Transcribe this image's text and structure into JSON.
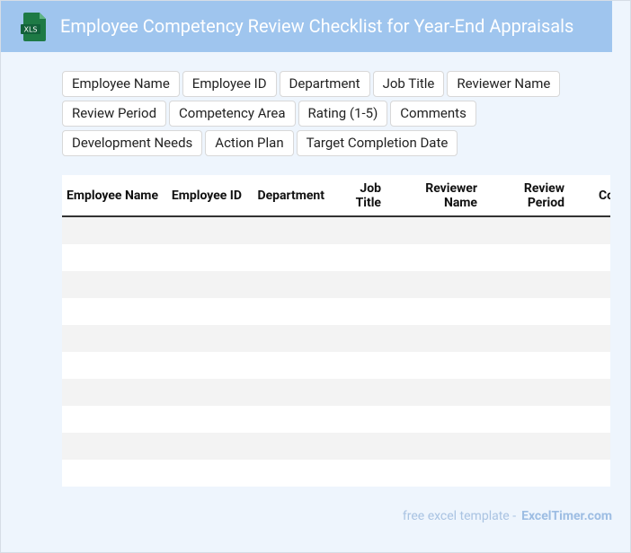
{
  "header": {
    "icon_label": "XLS",
    "title": "Employee Competency Review Checklist for Year-End Appraisals"
  },
  "tags": [
    "Employee Name",
    "Employee ID",
    "Department",
    "Job Title",
    "Reviewer Name",
    "Review Period",
    "Competency Area",
    "Rating (1-5)",
    "Comments",
    "Development Needs",
    "Action Plan",
    "Target Completion Date"
  ],
  "table": {
    "columns": [
      "Employee Name",
      "Employee ID",
      "Department",
      "Job Title",
      "Reviewer Name",
      "Review Period",
      "Competency Area"
    ]
  },
  "footer": {
    "text": "free excel template -",
    "brand": "ExcelTimer.com"
  }
}
